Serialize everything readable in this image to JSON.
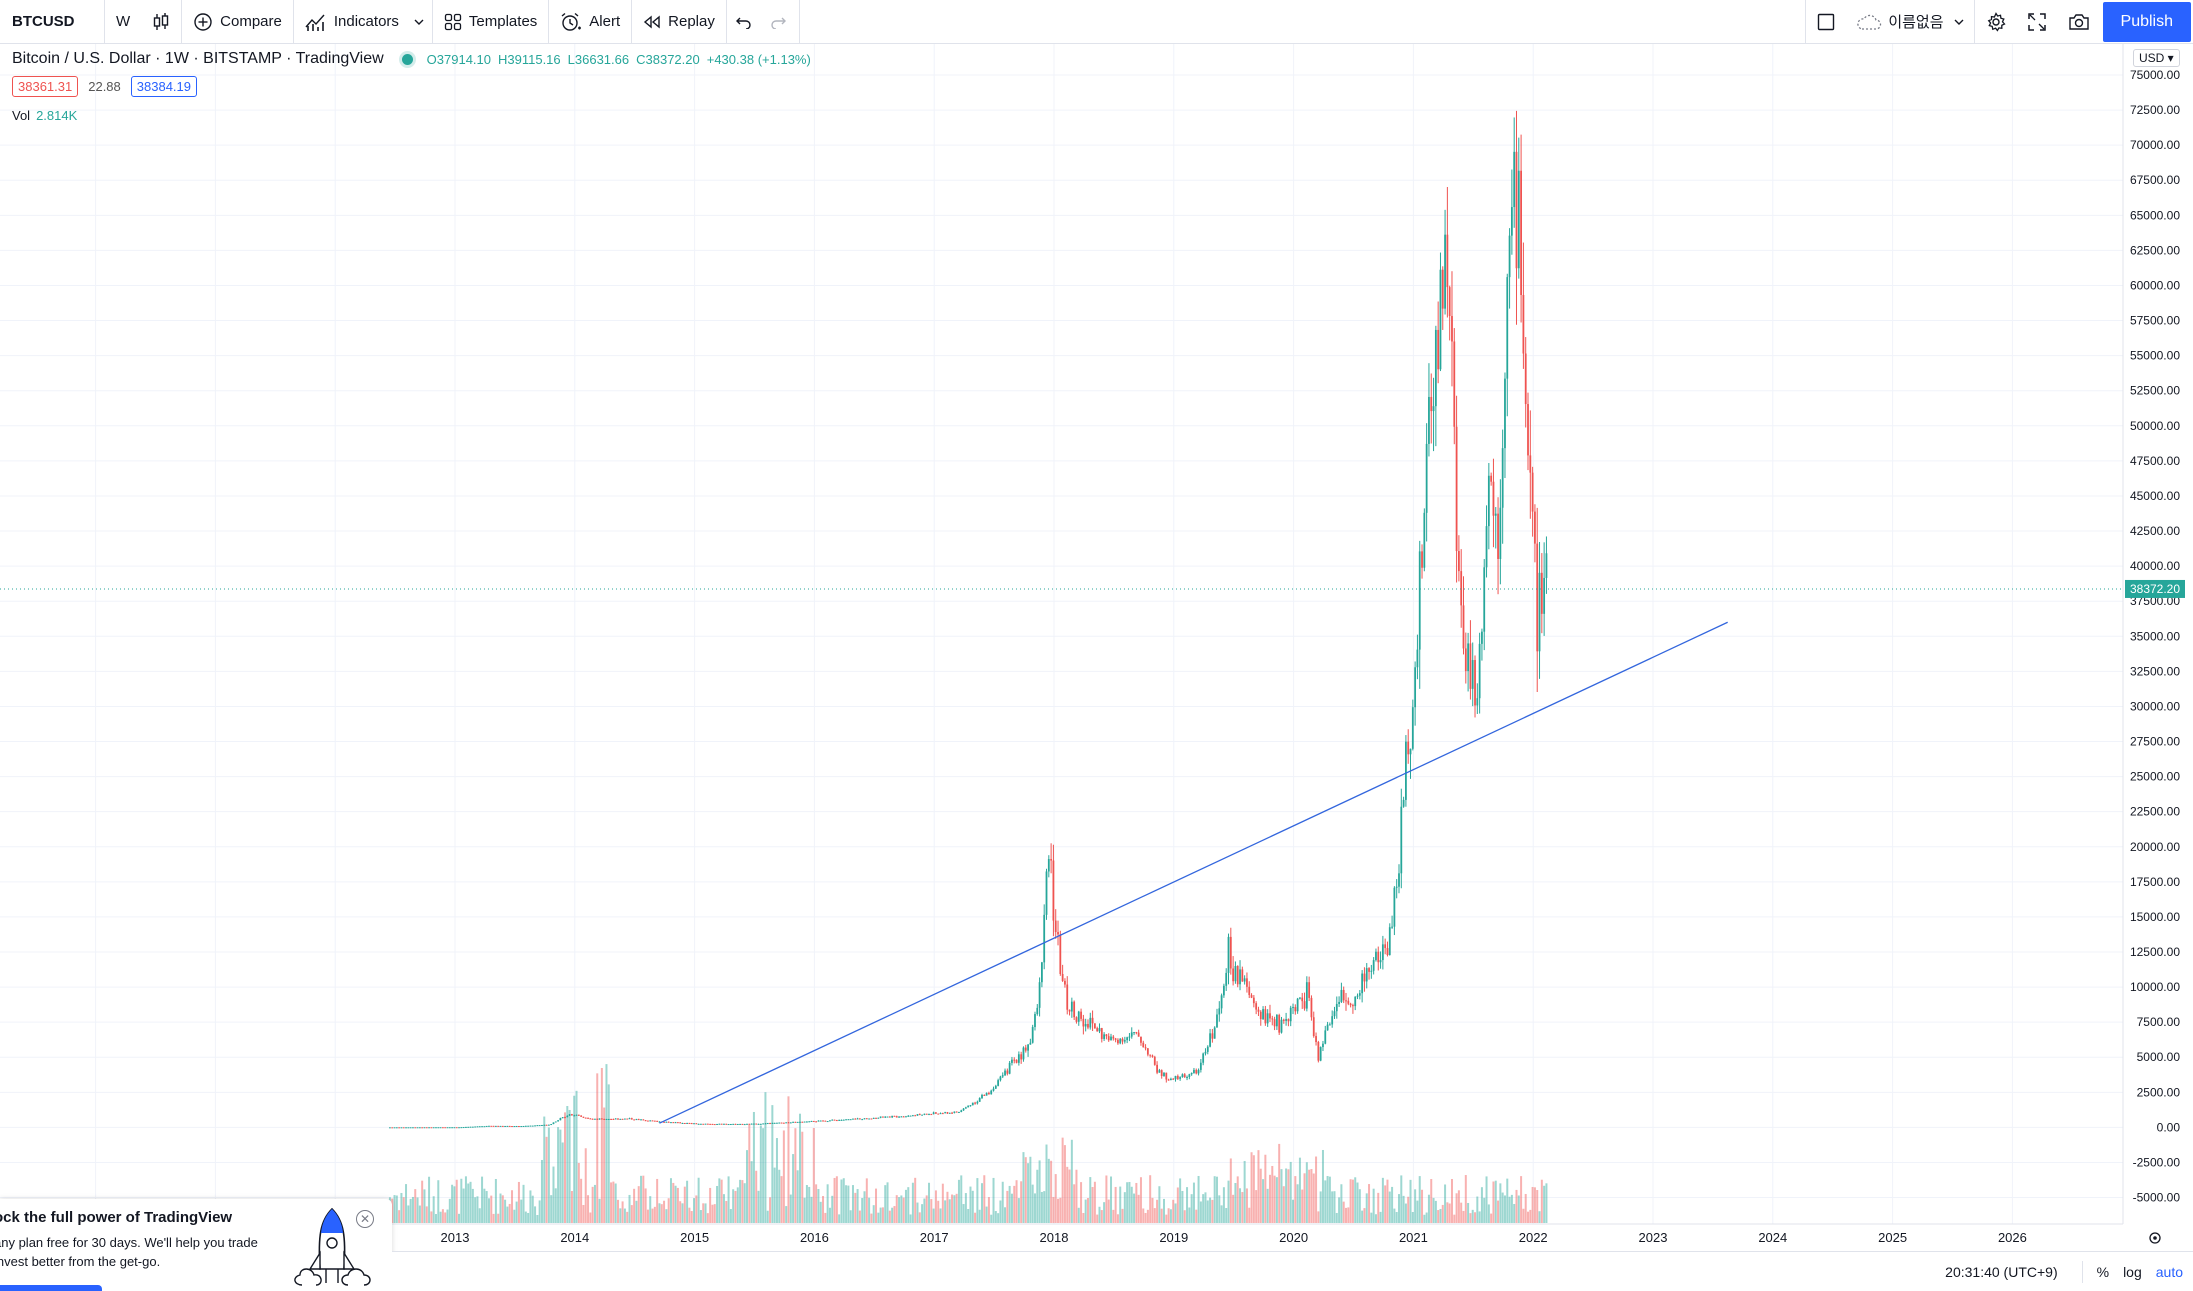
{
  "toolbar": {
    "symbol": "BTCUSD",
    "interval": "W",
    "compare": "Compare",
    "indicators": "Indicators",
    "templates": "Templates",
    "alert": "Alert",
    "replay": "Replay",
    "layout_name": "이름없음",
    "publish": "Publish"
  },
  "legend": {
    "title": "Bitcoin / U.S. Dollar · 1W · BITSTAMP · TradingView",
    "open": "O37914.10",
    "high": "H39115.16",
    "low": "L36631.66",
    "close": "C38372.20",
    "change": "+430.38 (+1.13%)",
    "bid": "38361.31",
    "spread": "22.88",
    "ask": "38384.19",
    "vol_label": "Vol",
    "vol_value": "2.814K"
  },
  "price_axis": {
    "currency": "USD",
    "ticks": [
      "75000.00",
      "72500.00",
      "70000.00",
      "67500.00",
      "65000.00",
      "62500.00",
      "60000.00",
      "57500.00",
      "55000.00",
      "52500.00",
      "50000.00",
      "47500.00",
      "45000.00",
      "42500.00",
      "40000.00",
      "37500.00",
      "35000.00",
      "32500.00",
      "30000.00",
      "27500.00",
      "25000.00",
      "22500.00",
      "20000.00",
      "17500.00",
      "15000.00",
      "12500.00",
      "10000.00",
      "7500.00",
      "5000.00",
      "2500.00",
      "0.00",
      "-2500.00",
      "-5000.00"
    ],
    "last_price": "38372.20"
  },
  "time_axis": {
    "labels": [
      "2013",
      "2014",
      "2015",
      "2016",
      "2017",
      "2018",
      "2019",
      "2020",
      "2021",
      "2022",
      "2023",
      "2024",
      "2025",
      "2026"
    ]
  },
  "chart_data": {
    "type": "candlestick",
    "symbol": "BTCUSD",
    "interval": "1W",
    "y_range": [
      -7000,
      77000
    ],
    "grid": true,
    "last_price": 38372.2,
    "price_path": [
      [
        "2012-06",
        6
      ],
      [
        "2013-01",
        13
      ],
      [
        "2013-04",
        110
      ],
      [
        "2013-07",
        90
      ],
      [
        "2013-10",
        200
      ],
      [
        "2013-11",
        600
      ],
      [
        "2013-12",
        950
      ],
      [
        "2014-02",
        600
      ],
      [
        "2014-06",
        620
      ],
      [
        "2014-09",
        420
      ],
      [
        "2015-01",
        250
      ],
      [
        "2015-06",
        240
      ],
      [
        "2015-11",
        380
      ],
      [
        "2016-06",
        650
      ],
      [
        "2016-12",
        950
      ],
      [
        "2017-03",
        1100
      ],
      [
        "2017-06",
        2500
      ],
      [
        "2017-08",
        4200
      ],
      [
        "2017-10",
        6000
      ],
      [
        "2017-11",
        9000
      ],
      [
        "2017-12",
        19500
      ],
      [
        "2018-01",
        12000
      ],
      [
        "2018-02",
        8500
      ],
      [
        "2018-04",
        7500
      ],
      [
        "2018-06",
        6200
      ],
      [
        "2018-09",
        6500
      ],
      [
        "2018-11",
        4000
      ],
      [
        "2018-12",
        3300
      ],
      [
        "2019-03",
        4000
      ],
      [
        "2019-05",
        8000
      ],
      [
        "2019-06",
        12500
      ],
      [
        "2019-07",
        10500
      ],
      [
        "2019-09",
        8300
      ],
      [
        "2019-11",
        7300
      ],
      [
        "2020-02",
        9500
      ],
      [
        "2020-03",
        5000
      ],
      [
        "2020-05",
        9300
      ],
      [
        "2020-07",
        9200
      ],
      [
        "2020-08",
        11500
      ],
      [
        "2020-10",
        13000
      ],
      [
        "2020-11",
        18500
      ],
      [
        "2020-12",
        28000
      ],
      [
        "2021-01",
        35000
      ],
      [
        "2021-02",
        50000
      ],
      [
        "2021-03",
        58000
      ],
      [
        "2021-04",
        63500
      ],
      [
        "2021-05",
        38000
      ],
      [
        "2021-06",
        33500
      ],
      [
        "2021-07",
        31500
      ],
      [
        "2021-08",
        47000
      ],
      [
        "2021-09",
        43000
      ],
      [
        "2021-10",
        61000
      ],
      [
        "2021-11",
        68000
      ],
      [
        "2021-12",
        48000
      ],
      [
        "2022-01",
        36500
      ],
      [
        "2022-02",
        38372
      ]
    ],
    "volume_pattern": "weekly volume histogram at bottom, colored by candle direction",
    "trendline": {
      "from": [
        "2014-09",
        300
      ],
      "to": [
        "2023-08",
        36000
      ],
      "color": "#3366dd"
    }
  },
  "promo": {
    "title": "ock the full power of TradingView",
    "line1": "any plan free for 30 days. We'll help you trade",
    "line2": " invest better from the get-go."
  },
  "bottom": {
    "clock": "20:31:40 (UTC+9)",
    "percent": "%",
    "log": "log",
    "auto": "auto"
  },
  "colors": {
    "up": "#26a69a",
    "down": "#ef5350",
    "accent": "#2962ff",
    "trend": "#3366dd"
  }
}
